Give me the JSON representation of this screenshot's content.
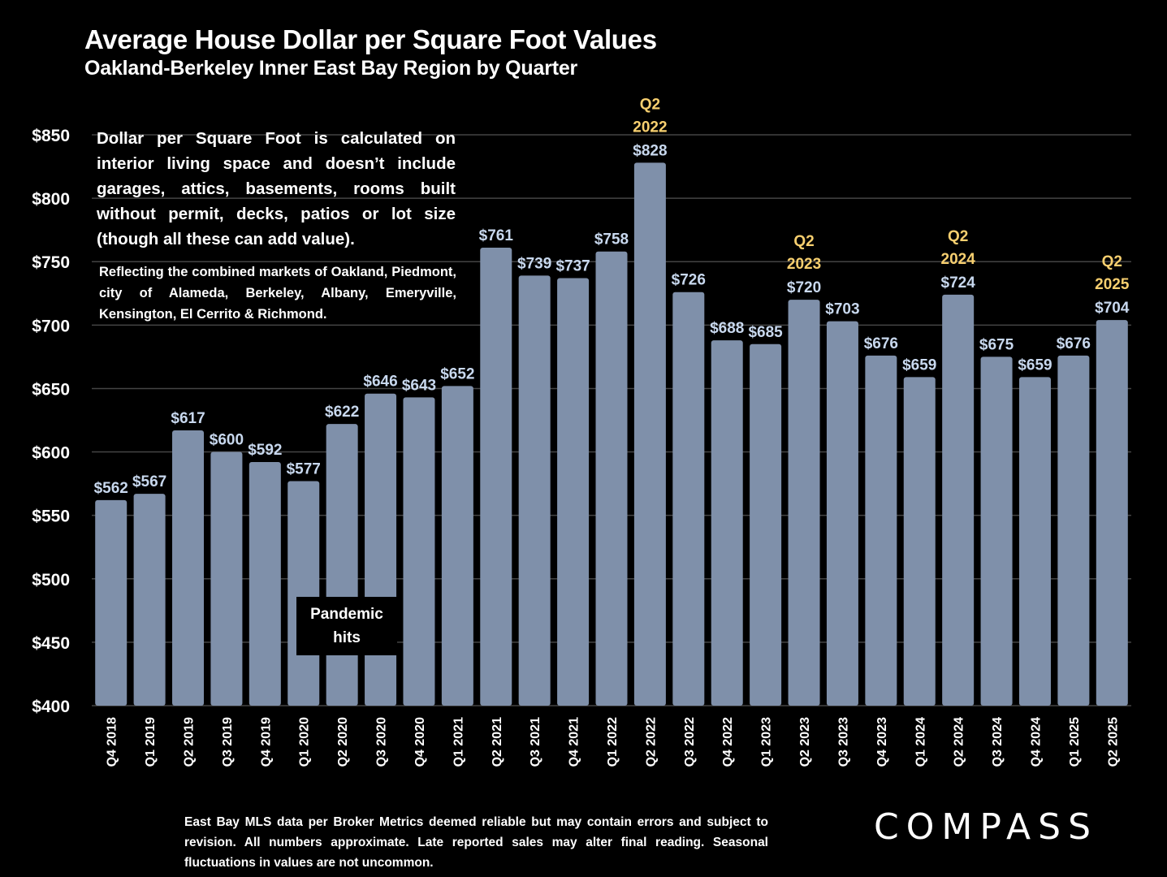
{
  "title": "Average House Dollar per Square Foot Values",
  "subtitle": "Oakland-Berkeley Inner East Bay Region by Quarter",
  "note_main": "Dollar per Square Foot is calculated on interior living space and doesn’t include garages, attics, basements, rooms built without permit, decks, patios or lot size (though all these can add value).",
  "note_markets": "Reflecting the combined markets of Oakland, Piedmont, city of Alameda, Berkeley, Albany, Emeryville, Kensington, El Cerrito & Richmond.",
  "pandemic_label": "Pandemic hits",
  "footer": "East Bay MLS data per Broker Metrics deemed reliable but may contain errors and subject to revision. All numbers approximate. Late reported sales may alter final reading. Seasonal fluctuations in values are not uncommon.",
  "logo": "COMPASS",
  "colors": {
    "bar": "#7f90aa",
    "value_label": "#c8d8ee",
    "highlight_label": "#f7cf6f",
    "grid": "#444444",
    "background": "#000000"
  },
  "chart_data": {
    "type": "bar",
    "title": "Average House Dollar per Square Foot Values",
    "subtitle": "Oakland-Berkeley Inner East Bay Region by Quarter",
    "categories": [
      "Q4 2018",
      "Q1 2019",
      "Q2 2019",
      "Q3 2019",
      "Q4 2019",
      "Q1 2020",
      "Q2 2020",
      "Q3 2020",
      "Q4 2020",
      "Q1 2021",
      "Q2 2021",
      "Q3 2021",
      "Q4 2021",
      "Q1 2022",
      "Q2 2022",
      "Q3 2022",
      "Q4 2022",
      "Q1 2023",
      "Q2 2023",
      "Q3 2023",
      "Q4 2023",
      "Q1 2024",
      "Q2 2024",
      "Q3 2024",
      "Q4 2024",
      "Q1 2025",
      "Q2 2025"
    ],
    "values": [
      562,
      567,
      617,
      600,
      592,
      577,
      622,
      646,
      643,
      652,
      761,
      739,
      737,
      758,
      828,
      726,
      688,
      685,
      720,
      703,
      676,
      659,
      724,
      675,
      659,
      676,
      704
    ],
    "value_labels": [
      "$562",
      "$567",
      "$617",
      "$600",
      "$592",
      "$577",
      "$622",
      "$646",
      "$643",
      "$652",
      "$761",
      "$739",
      "$737",
      "$758",
      "$828",
      "$726",
      "$688",
      "$685",
      "$720",
      "$703",
      "$676",
      "$659",
      "$724",
      "$675",
      "$659",
      "$676",
      "$704"
    ],
    "ylim": [
      400,
      850
    ],
    "yticks": [
      400,
      450,
      500,
      550,
      600,
      650,
      700,
      750,
      800,
      850
    ],
    "ytick_labels": [
      "$400",
      "$450",
      "$500",
      "$550",
      "$600",
      "$650",
      "$700",
      "$750",
      "$800",
      "$850"
    ],
    "grid": true,
    "highlights": [
      {
        "index": 14,
        "line1": "Q2",
        "line2": "2022"
      },
      {
        "index": 18,
        "line1": "Q2",
        "line2": "2023"
      },
      {
        "index": 22,
        "line1": "Q2",
        "line2": "2024"
      },
      {
        "index": 26,
        "line1": "Q2",
        "line2": "2025"
      }
    ]
  }
}
